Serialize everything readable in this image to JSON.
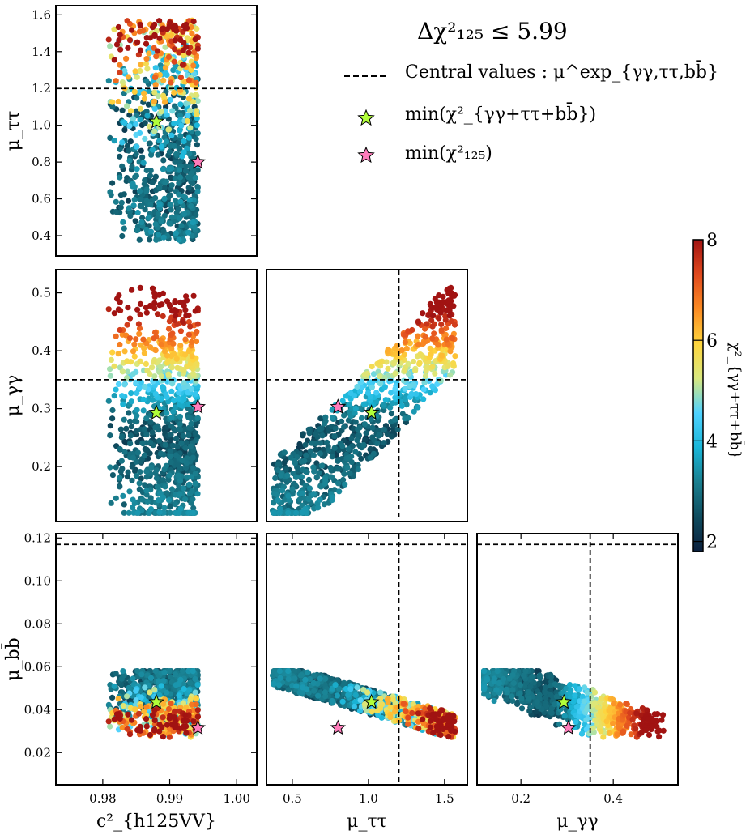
{
  "legend": {
    "title": "Δχ²₁₂₅ ≤ 5.99",
    "central_label": "Central values :  μ^exp_{γγ,ττ,bb̄}",
    "min_gg_label": "min(χ²_{γγ+ττ+bb̄})",
    "min_125_label": "min(χ²₁₂₅)"
  },
  "colorbar": {
    "label": "χ²_{γγ+ττ+bb̄}",
    "min": 1.8,
    "max": 8.0,
    "ticks": [
      {
        "v": 2,
        "label": "2"
      },
      {
        "v": 4,
        "label": "4"
      },
      {
        "v": 6,
        "label": "6"
      },
      {
        "v": 8,
        "label": "8"
      }
    ],
    "colors": [
      "#0b1f3d",
      "#0f4c5e",
      "#1a7f8f",
      "#1ab6d8",
      "#4fd2ff",
      "#d9e87f",
      "#fed53d",
      "#fb8b23",
      "#e0491e",
      "#a11312"
    ]
  },
  "colors": {
    "star_gg": "#b2ff3a",
    "star_125": "#ff7cbb"
  },
  "chart_data": [
    {
      "id": "p00",
      "type": "scatter",
      "x_var": "c2_hVV",
      "y_var": "mu_tautau",
      "xlim": [
        0.973,
        1.003
      ],
      "ylim": [
        0.29,
        1.65
      ],
      "xticks": [],
      "yticks": [
        0.4,
        0.6,
        0.8,
        1.0,
        1.2,
        1.4,
        1.6
      ],
      "ytick_labels": [
        "0.4",
        "0.6",
        "0.8",
        "1.0",
        "1.2",
        "1.4",
        "1.6"
      ],
      "ylabel": "μ_ττ",
      "xlabel": "",
      "hline": 1.2,
      "vline": null,
      "star_gg": [
        0.988,
        1.02
      ],
      "star_125": [
        0.9942,
        0.8
      ]
    },
    {
      "id": "p10",
      "type": "scatter",
      "x_var": "c2_hVV",
      "y_var": "mu_gg",
      "xlim": [
        0.973,
        1.003
      ],
      "ylim": [
        0.105,
        0.54
      ],
      "xticks": [],
      "yticks": [
        0.2,
        0.3,
        0.4,
        0.5
      ],
      "ytick_labels": [
        "0.2",
        "0.3",
        "0.4",
        "0.5"
      ],
      "ylabel": "μ_γγ",
      "xlabel": "",
      "hline": 0.35,
      "vline": null,
      "star_gg": [
        0.988,
        0.293
      ],
      "star_125": [
        0.9942,
        0.303
      ]
    },
    {
      "id": "p11",
      "type": "scatter",
      "x_var": "mu_tautau",
      "y_var": "mu_gg",
      "xlim": [
        0.33,
        1.65
      ],
      "ylim": [
        0.105,
        0.54
      ],
      "xticks": [],
      "yticks": [],
      "ylabel": "",
      "xlabel": "",
      "hline": 0.35,
      "vline": 1.2,
      "star_gg": [
        1.02,
        0.293
      ],
      "star_125": [
        0.8,
        0.303
      ]
    },
    {
      "id": "p20",
      "type": "scatter",
      "x_var": "c2_hVV",
      "y_var": "mu_bb",
      "xlim": [
        0.973,
        1.003
      ],
      "ylim": [
        0.005,
        0.122
      ],
      "xticks": [
        0.98,
        0.99,
        1.0
      ],
      "xtick_labels": [
        "0.98",
        "0.99",
        "1.00"
      ],
      "yticks": [
        0.02,
        0.04,
        0.06,
        0.08,
        0.1,
        0.12
      ],
      "ytick_labels": [
        "0.02",
        "0.04",
        "0.06",
        "0.08",
        "0.10",
        "0.12"
      ],
      "ylabel": "μ_bb̄",
      "xlabel": "c²_{h125VV}",
      "hline": 0.117,
      "vline": null,
      "star_gg": [
        0.988,
        0.0435
      ],
      "star_125": [
        0.9942,
        0.0315
      ]
    },
    {
      "id": "p21",
      "type": "scatter",
      "x_var": "mu_tautau",
      "y_var": "mu_bb",
      "xlim": [
        0.33,
        1.65
      ],
      "ylim": [
        0.005,
        0.122
      ],
      "xticks": [
        0.5,
        1.0,
        1.5
      ],
      "xtick_labels": [
        "0.5",
        "1.0",
        "1.5"
      ],
      "yticks": [],
      "ylabel": "",
      "xlabel": "μ_ττ",
      "hline": 0.117,
      "vline": 1.2,
      "star_gg": [
        1.02,
        0.0435
      ],
      "star_125": [
        0.8,
        0.0315
      ]
    },
    {
      "id": "p22",
      "type": "scatter",
      "x_var": "mu_gg",
      "y_var": "mu_bb",
      "xlim": [
        0.105,
        0.54
      ],
      "ylim": [
        0.005,
        0.122
      ],
      "xticks": [
        0.2,
        0.4
      ],
      "xtick_labels": [
        "0.2",
        "0.4"
      ],
      "yticks": [],
      "ylabel": "",
      "xlabel": "μ_γγ",
      "hline": 0.117,
      "vline": 0.35,
      "star_gg": [
        0.293,
        0.0435
      ],
      "star_125": [
        0.303,
        0.0315
      ]
    }
  ]
}
